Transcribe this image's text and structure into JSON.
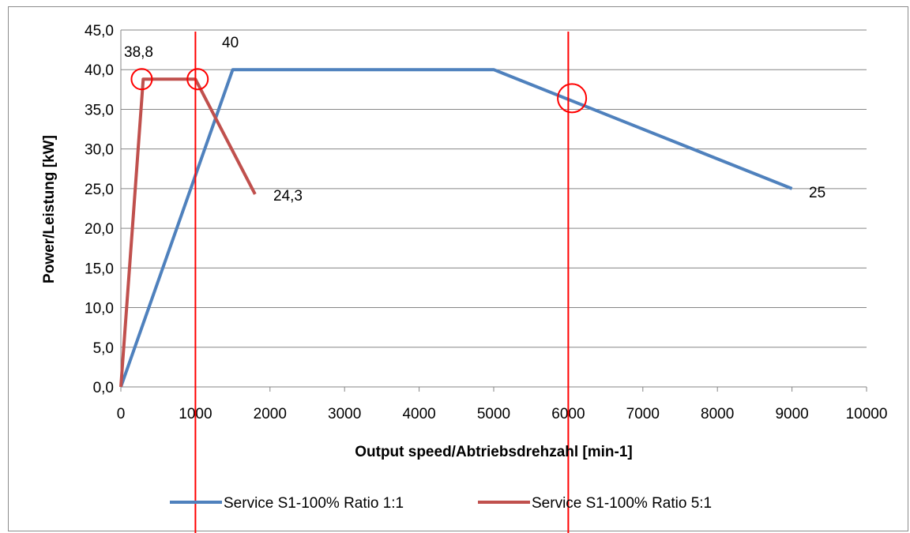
{
  "chart_data": {
    "type": "line",
    "xlabel": "Output speed/Abtriebsdrehzahl [min-1]",
    "ylabel": "Power/Leistung  [kW]",
    "xlim": [
      0,
      10000
    ],
    "ylim": [
      0,
      45
    ],
    "x_ticks": [
      0,
      1000,
      2000,
      3000,
      4000,
      5000,
      6000,
      7000,
      8000,
      9000,
      10000
    ],
    "y_ticks": [
      0,
      5,
      10,
      15,
      20,
      25,
      30,
      35,
      40,
      45
    ],
    "x_tick_labels": [
      "0",
      "1000",
      "2000",
      "3000",
      "4000",
      "5000",
      "6000",
      "7000",
      "8000",
      "9000",
      "10000"
    ],
    "y_tick_labels": [
      "0,0",
      "5,0",
      "10,0",
      "15,0",
      "20,0",
      "25,0",
      "30,0",
      "35,0",
      "40,0",
      "45,0"
    ],
    "grid": "horizontal",
    "legend_position": "bottom",
    "series": [
      {
        "name": "Service S1-100% Ratio 1:1",
        "color": "#4f81bd",
        "x": [
          0,
          1500,
          5000,
          9000
        ],
        "y": [
          0,
          40,
          40,
          25
        ]
      },
      {
        "name": "Service S1-100% Ratio 5:1",
        "color": "#c0504d",
        "x": [
          0,
          300,
          1000,
          1800
        ],
        "y": [
          0,
          38.8,
          38.8,
          24.3
        ]
      }
    ],
    "data_labels": [
      {
        "text": "38,8",
        "x": 300,
        "y": 38.8
      },
      {
        "text": "40",
        "x": 1500,
        "y": 40
      },
      {
        "text": "24,3",
        "x": 1800,
        "y": 24.3
      },
      {
        "text": "25",
        "x": 9000,
        "y": 25
      }
    ],
    "vertical_markers": [
      {
        "x": 1000,
        "color": "#ff0000"
      },
      {
        "x": 6000,
        "color": "#ff0000"
      }
    ],
    "circle_markers": [
      {
        "x": 280,
        "y": 38.8,
        "color": "#ff0000"
      },
      {
        "x": 1030,
        "y": 38.8,
        "color": "#ff0000"
      },
      {
        "x": 6050,
        "y": 36.4,
        "color": "#ff0000"
      }
    ]
  }
}
